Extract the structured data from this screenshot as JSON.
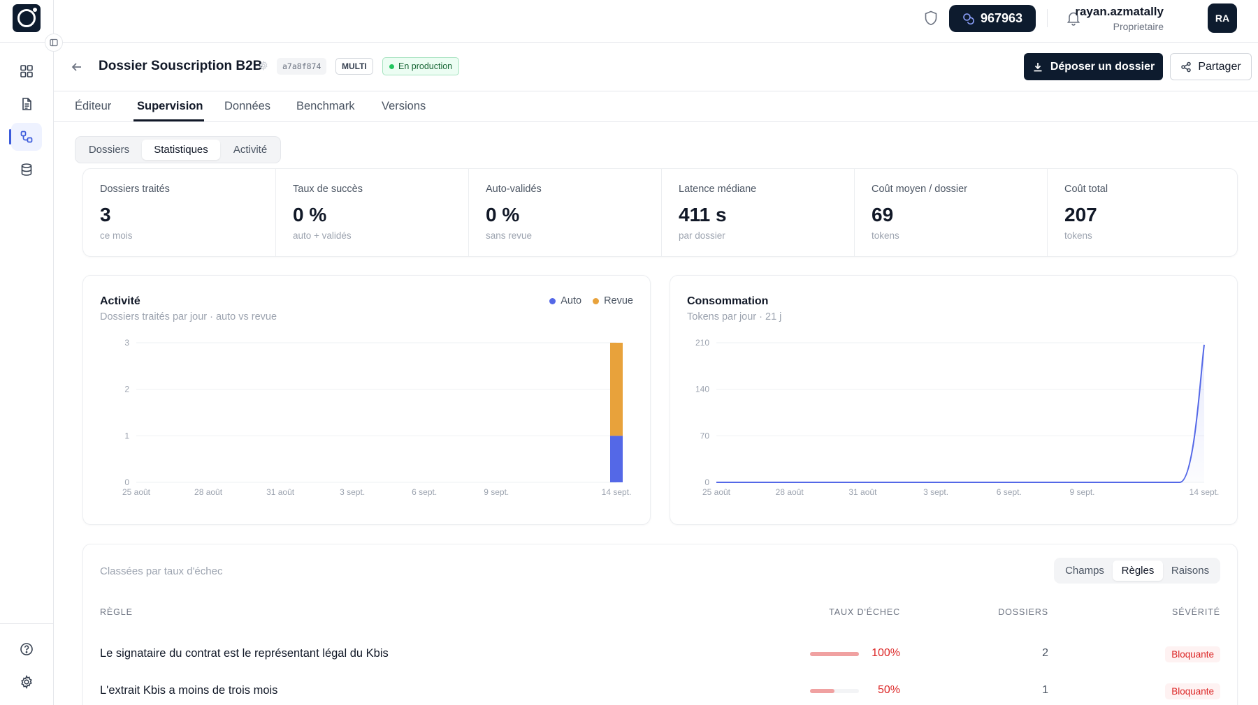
{
  "topbar": {
    "tokens": "967963",
    "user_name": "rayan.azmatally",
    "user_role": "Proprietaire",
    "avatar_initials": "RA"
  },
  "header": {
    "title": "Dossier Souscription B2B",
    "id_badge": "a7a8f874",
    "type_badge": "MULTI",
    "status_badge": "En production",
    "primary_button": "Déposer un dossier",
    "secondary_button": "Partager"
  },
  "tabs": [
    {
      "label": "Éditeur"
    },
    {
      "label": "Supervision"
    },
    {
      "label": "Données"
    },
    {
      "label": "Benchmark"
    },
    {
      "label": "Versions"
    }
  ],
  "subtabs": [
    {
      "label": "Dossiers"
    },
    {
      "label": "Statistiques"
    },
    {
      "label": "Activité"
    }
  ],
  "kpis": [
    {
      "label": "Dossiers traités",
      "value": "3",
      "sub": "ce mois"
    },
    {
      "label": "Taux de succès",
      "value": "0 %",
      "sub": "auto + validés"
    },
    {
      "label": "Auto-validés",
      "value": "0 %",
      "sub": "sans revue"
    },
    {
      "label": "Latence médiane",
      "value": "411 s",
      "sub": "par dossier"
    },
    {
      "label": "Coût moyen / dossier",
      "value": "69",
      "sub": "tokens"
    },
    {
      "label": "Coût total",
      "value": "207",
      "sub": "tokens"
    }
  ],
  "activity_card": {
    "title": "Activité",
    "subtitle": "Dossiers traités par jour · auto vs revue",
    "legend": [
      {
        "label": "Auto",
        "color": "#5468e7"
      },
      {
        "label": "Revue",
        "color": "#e8a23b"
      }
    ]
  },
  "consumption_card": {
    "title": "Consommation",
    "subtitle": "Tokens par jour · 21 j"
  },
  "chart_data": [
    {
      "type": "bar",
      "stacked": true,
      "title": "Activité",
      "x_tick_labels": [
        "25 août",
        "28 août",
        "31 août",
        "3 sept.",
        "6 sept.",
        "9 sept.",
        "14 sept."
      ],
      "categories": [
        "25 août",
        "26 août",
        "27 août",
        "28 août",
        "29 août",
        "30 août",
        "31 août",
        "1 sept.",
        "2 sept.",
        "3 sept.",
        "4 sept.",
        "5 sept.",
        "6 sept.",
        "7 sept.",
        "8 sept.",
        "9 sept.",
        "10 sept.",
        "11 sept.",
        "12 sept.",
        "13 sept.",
        "14 sept."
      ],
      "series": [
        {
          "name": "Auto",
          "color": "#5468e7",
          "values": [
            0,
            0,
            0,
            0,
            0,
            0,
            0,
            0,
            0,
            0,
            0,
            0,
            0,
            0,
            0,
            0,
            0,
            0,
            0,
            0,
            1
          ]
        },
        {
          "name": "Revue",
          "color": "#e8a23b",
          "values": [
            0,
            0,
            0,
            0,
            0,
            0,
            0,
            0,
            0,
            0,
            0,
            0,
            0,
            0,
            0,
            0,
            0,
            0,
            0,
            0,
            2
          ]
        }
      ],
      "y_ticks": [
        "0",
        "1",
        "2",
        "3"
      ],
      "ylim": [
        0,
        3
      ],
      "grid": true,
      "legend_position": "top-right"
    },
    {
      "type": "area",
      "title": "Consommation",
      "x_tick_labels": [
        "25 août",
        "28 août",
        "31 août",
        "3 sept.",
        "6 sept.",
        "9 sept.",
        "14 sept."
      ],
      "categories": [
        "25 août",
        "26 août",
        "27 août",
        "28 août",
        "29 août",
        "30 août",
        "31 août",
        "1 sept.",
        "2 sept.",
        "3 sept.",
        "4 sept.",
        "5 sept.",
        "6 sept.",
        "7 sept.",
        "8 sept.",
        "9 sept.",
        "10 sept.",
        "11 sept.",
        "12 sept.",
        "13 sept.",
        "14 sept."
      ],
      "series": [
        {
          "color": "#5468e7",
          "values": [
            0,
            0,
            0,
            0,
            0,
            0,
            0,
            0,
            0,
            0,
            0,
            0,
            0,
            0,
            0,
            0,
            0,
            0,
            0,
            0,
            207
          ]
        }
      ],
      "y_ticks": [
        "0",
        "70",
        "140",
        "210"
      ],
      "ylim": [
        0,
        210
      ],
      "grid": true
    }
  ],
  "rules_table": {
    "subtitle": "Classées par taux d'échec",
    "segments": [
      {
        "label": "Champs"
      },
      {
        "label": "Règles"
      },
      {
        "label": "Raisons"
      }
    ],
    "headers": {
      "rule": "Règle",
      "rate": "Taux d'échec",
      "count": "Dossiers",
      "severity": "Sévérité"
    },
    "rows": [
      {
        "rule": "Le signataire du contrat est le représentant légal du Kbis",
        "rate": "100%",
        "rate_value": 1.0,
        "count": "2",
        "severity": "Bloquante"
      },
      {
        "rule": "L'extrait Kbis a moins de trois mois",
        "rate": "50%",
        "rate_value": 0.5,
        "count": "1",
        "severity": "Bloquante"
      }
    ]
  }
}
